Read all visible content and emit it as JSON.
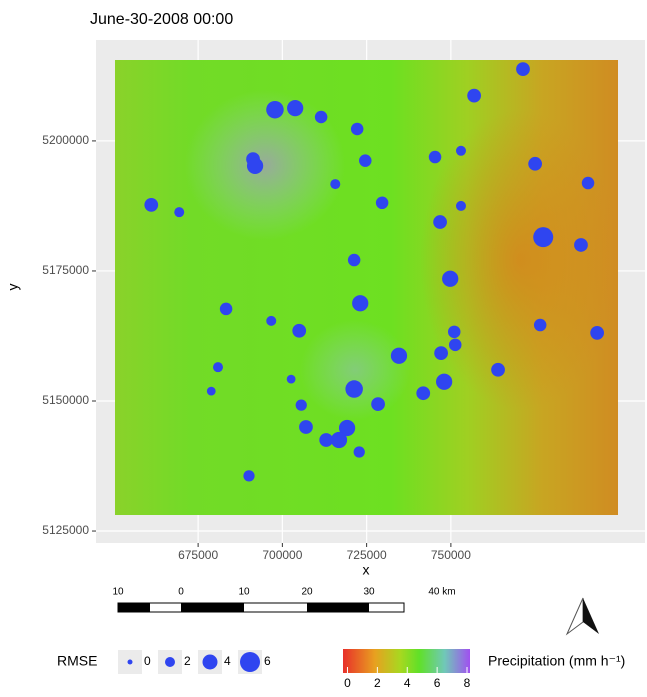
{
  "chart_data": {
    "type": "scatter",
    "title": "June-30-2008 00:00",
    "x_label": "x",
    "y_label": "y",
    "xlim": [
      644700,
      807600
    ],
    "ylim": [
      5122700,
      5219400
    ],
    "xticks": [
      675000,
      700000,
      725000,
      750000
    ],
    "yticks": [
      5125000,
      5150000,
      5175000,
      5200000
    ],
    "grid": true,
    "color": "#2f45f0",
    "x": [
      771400,
      697800,
      703800,
      711500,
      722200,
      756900,
      691300,
      691900,
      724600,
      715700,
      745300,
      753000,
      775000,
      790700,
      661100,
      669400,
      729600,
      746800,
      753000,
      777400,
      788600,
      721300,
      749800,
      723100,
      683300,
      696700,
      705000,
      751000,
      776500,
      793400,
      751300,
      747100,
      734600,
      680900,
      702600,
      678900,
      721300,
      728400,
      741800,
      748000,
      764000,
      705600,
      707000,
      719200,
      713000,
      716800,
      722800,
      690100
    ],
    "values": [
      5213800,
      5206000,
      5206300,
      5204600,
      5202300,
      5208700,
      5196500,
      5195200,
      5196200,
      5191700,
      5196900,
      5198100,
      5195600,
      5191900,
      5187700,
      5186300,
      5188100,
      5184400,
      5187500,
      5181500,
      5180000,
      5177100,
      5173500,
      5168800,
      5167700,
      5165400,
      5163500,
      5163300,
      5164600,
      5163100,
      5160800,
      5159200,
      5158700,
      5156500,
      5154200,
      5151900,
      5152300,
      5149400,
      5151500,
      5153700,
      5156000,
      5149200,
      5145000,
      5144800,
      5142500,
      5142500,
      5140200,
      5135600
    ],
    "sizes": [
      3.5,
      5,
      4.5,
      3,
      3,
      3.5,
      3.5,
      4.5,
      3,
      2,
      3,
      2,
      3.5,
      3,
      3.5,
      2,
      3,
      3.5,
      2,
      6,
      3.5,
      3,
      4.5,
      4.5,
      3,
      2,
      3.5,
      3,
      3,
      3.5,
      3,
      3.5,
      4.5,
      2,
      1.5,
      1.5,
      5,
      3.5,
      3.5,
      4.5,
      3.5,
      2.5,
      3.5,
      4.5,
      3.5,
      4.5,
      2.5,
      2.5
    ],
    "size_legend": {
      "title": "RMSE",
      "values": [
        0,
        2,
        4,
        6
      ]
    },
    "color_legend": {
      "title": "Precipitation (mm h⁻¹)",
      "ticks": [
        0,
        2,
        4,
        6,
        8
      ],
      "lim": [
        -0.3,
        8.2
      ]
    },
    "scale_bar": {
      "labels": [
        "10",
        "0",
        "10",
        "20",
        "30",
        "40 km"
      ]
    }
  }
}
